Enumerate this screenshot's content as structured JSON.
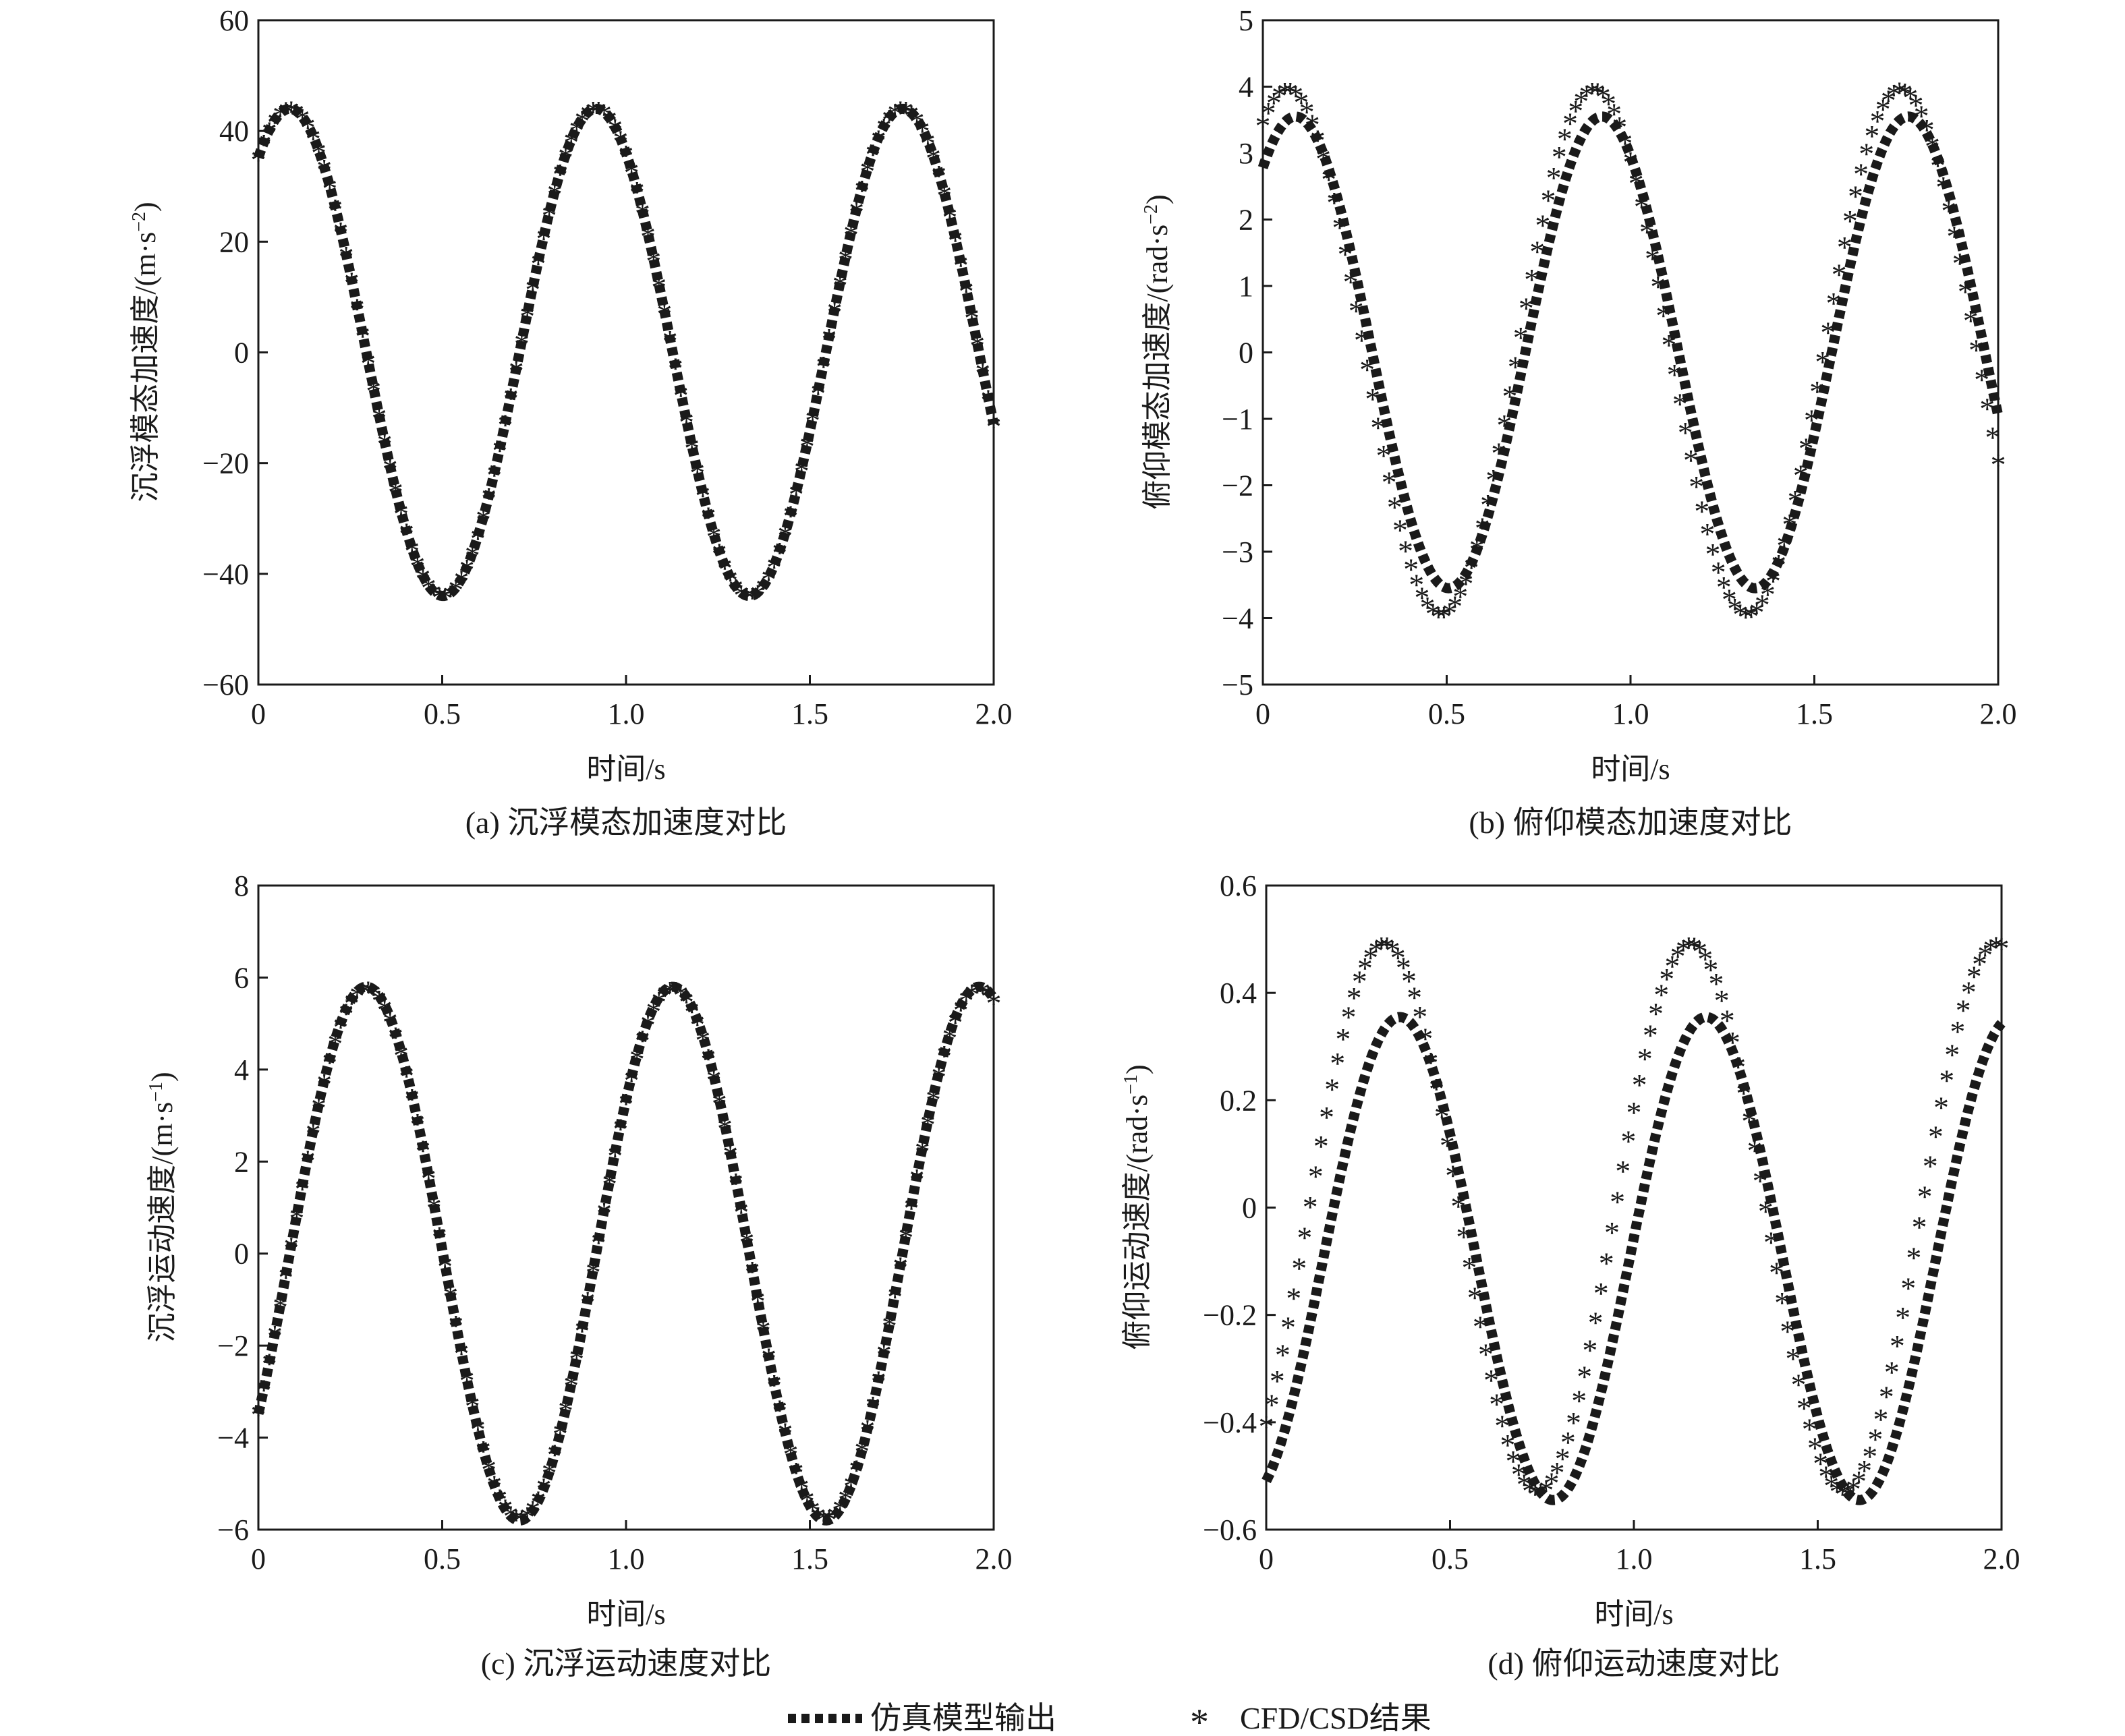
{
  "legend": {
    "sim_label": "仿真模型输出",
    "cfd_label": "CFD/CSD结果",
    "sim_color": "#1a1a1a",
    "cfd_color": "#e8202a"
  },
  "chart_data": [
    {
      "type": "line",
      "caption": "(a) 沉浮模态加速度对比",
      "xlabel": "时间/s",
      "ylabel_main": "沉浮模态加速度/(m·s",
      "ylabel_sup": "−2",
      "ylabel_close": ")",
      "xlim": [
        0,
        2.0
      ],
      "ylim": [
        -60,
        60
      ],
      "xticks": [
        "0",
        "0.5",
        "1.0",
        "1.5",
        "2.0"
      ],
      "yticks": [
        "60",
        "40",
        "20",
        "0",
        "−20",
        "−40",
        "−60"
      ],
      "series": [
        {
          "name": "仿真模型输出",
          "amplitude": 44,
          "period_s": 0.8333,
          "phase_rad": 0.927,
          "offset": 0
        },
        {
          "name": "CFD/CSD结果",
          "amplitude": 44,
          "period_s": 0.8333,
          "phase_rad": 0.927,
          "offset": 0
        }
      ]
    },
    {
      "type": "line",
      "caption": "(b) 俯仰模态加速度对比",
      "xlabel": "时间/s",
      "ylabel_main": "俯仰模态加速度/(rad·s",
      "ylabel_sup": "−2",
      "ylabel_close": ")",
      "xlim": [
        0,
        2.0
      ],
      "ylim": [
        -5,
        5
      ],
      "xticks": [
        "0",
        "0.5",
        "1.0",
        "1.5",
        "2.0"
      ],
      "yticks": [
        "5",
        "4",
        "3",
        "2",
        "1",
        "0",
        "−1",
        "−2",
        "−3",
        "−4",
        "−5"
      ],
      "series": [
        {
          "name": "仿真模型输出",
          "amplitude": 3.55,
          "period_s": 0.8333,
          "phase_rad": 0.9,
          "offset": 0
        },
        {
          "name": "CFD/CSD结果",
          "amplitude": 3.95,
          "period_s": 0.8333,
          "phase_rad": 1.06,
          "offset": 0
        }
      ]
    },
    {
      "type": "line",
      "caption": "(c) 沉浮运动速度对比",
      "xlabel": "时间/s",
      "ylabel_main": "沉浮运动速度/(m·s",
      "ylabel_sup": "−1",
      "ylabel_close": ")",
      "xlim": [
        0,
        2.0
      ],
      "ylim": [
        -6,
        8
      ],
      "xticks": [
        "0",
        "0.5",
        "1.0",
        "1.5",
        "2.0"
      ],
      "yticks": [
        "8",
        "6",
        "4",
        "2",
        "0",
        "−2",
        "−4",
        "−6"
      ],
      "series": [
        {
          "name": "仿真模型输出",
          "amplitude": 5.8,
          "period_s": 0.8333,
          "phase_rad": -0.644,
          "offset": 0
        },
        {
          "name": "CFD/CSD结果",
          "amplitude": 5.75,
          "period_s": 0.8333,
          "phase_rad": -0.644,
          "offset": 0
        }
      ]
    },
    {
      "type": "line",
      "caption": "(d) 俯仰运动速度对比",
      "xlabel": "时间/s",
      "ylabel_main": "俯仰运动速度/(rad·s",
      "ylabel_sup": "−1",
      "ylabel_close": ")",
      "xlim": [
        0,
        2.0
      ],
      "ylim": [
        -0.6,
        0.6
      ],
      "xticks": [
        "0",
        "0.5",
        "1.0",
        "1.5",
        "2.0"
      ],
      "yticks": [
        "0.6",
        "0.4",
        "0.2",
        "0",
        "−0.2",
        "−0.4",
        "−0.6"
      ],
      "series": [
        {
          "name": "仿真模型输出",
          "amplitude": 0.45,
          "period_s": 0.8333,
          "phase_rad": -1.17,
          "offset": -0.095
        },
        {
          "name": "CFD/CSD结果",
          "amplitude": 0.51,
          "period_s": 0.8333,
          "phase_rad": -0.85,
          "offset": -0.02
        }
      ]
    }
  ]
}
